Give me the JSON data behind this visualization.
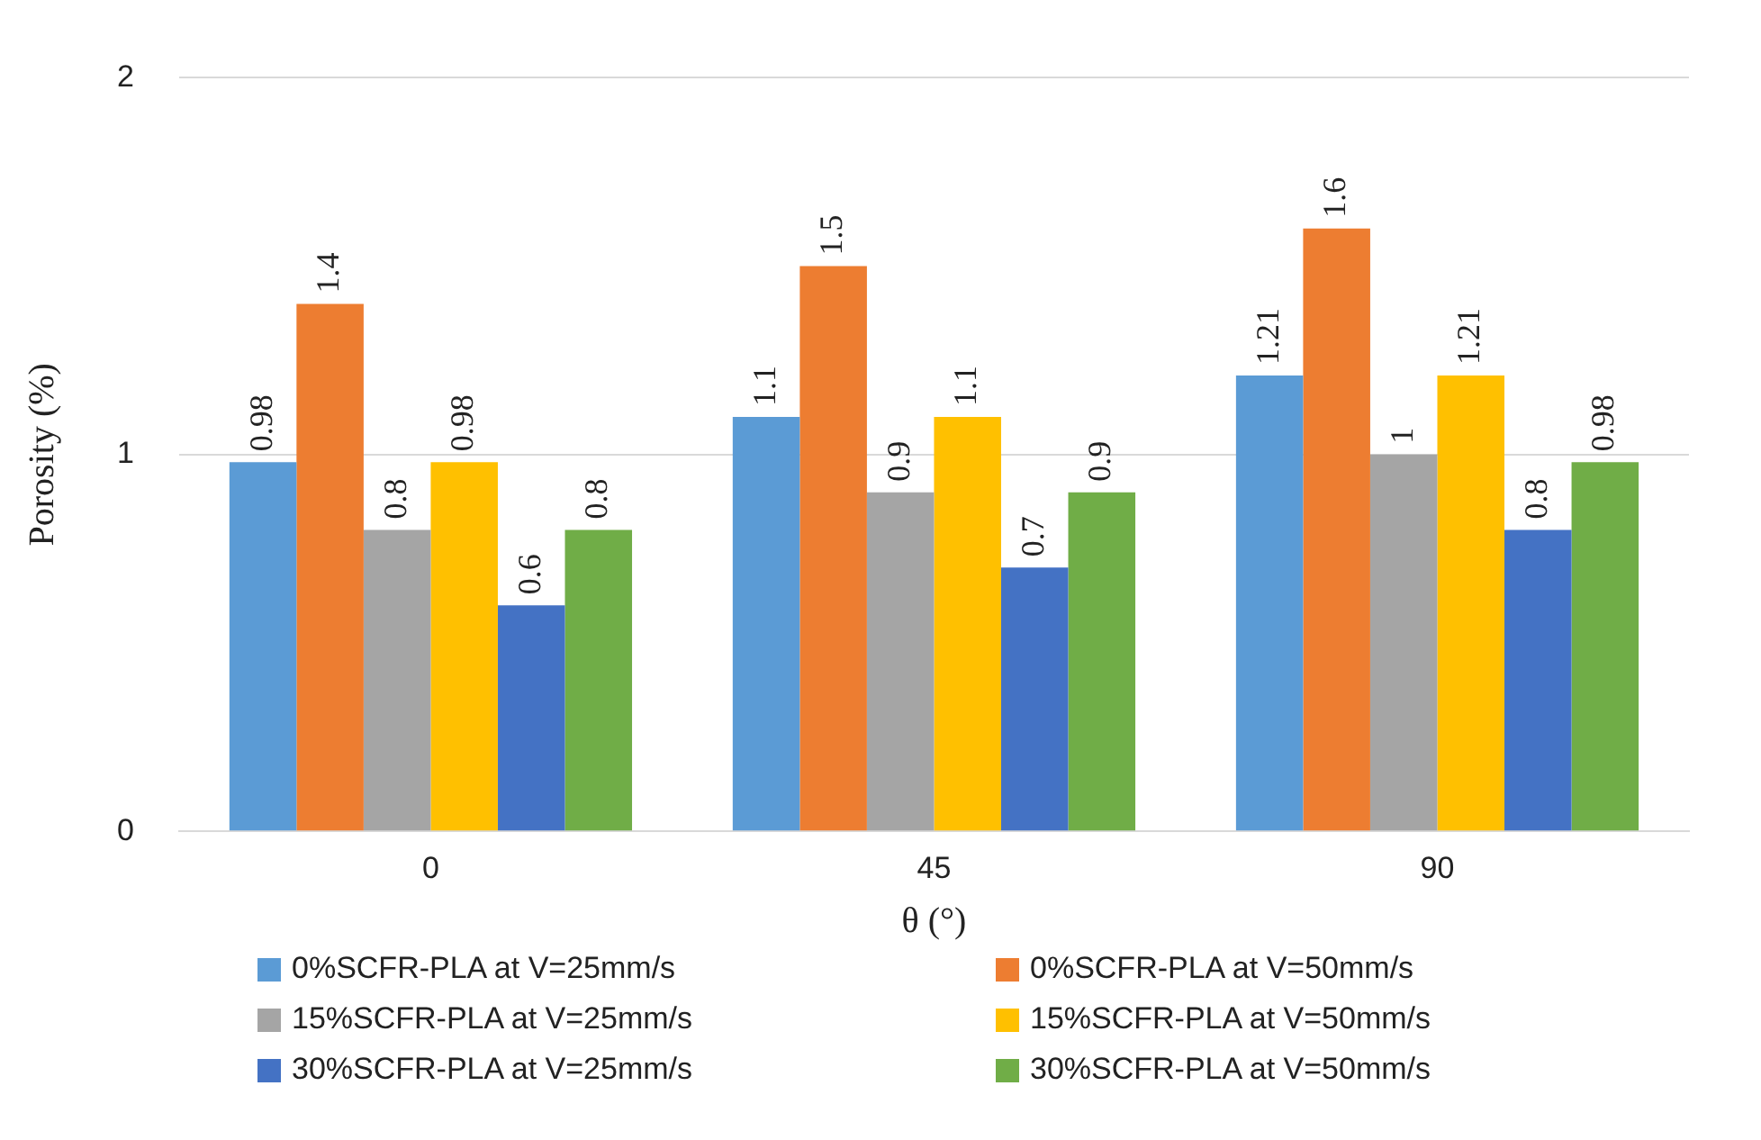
{
  "chart_data": {
    "type": "bar",
    "xlabel": "θ (°)",
    "ylabel": "Porosity (%)",
    "categories": [
      "0",
      "45",
      "90"
    ],
    "series": [
      {
        "name": "0%SCFR-PLA at V=25mm/s",
        "color": "#5b9bd5",
        "values": [
          0.98,
          1.1,
          1.21
        ]
      },
      {
        "name": "0%SCFR-PLA at V=50mm/s",
        "color": "#ed7d31",
        "values": [
          1.4,
          1.5,
          1.6
        ]
      },
      {
        "name": "15%SCFR-PLA at V=25mm/s",
        "color": "#a5a5a5",
        "values": [
          0.8,
          0.9,
          1
        ]
      },
      {
        "name": "15%SCFR-PLA at V=50mm/s",
        "color": "#ffc000",
        "values": [
          0.98,
          1.1,
          1.21
        ]
      },
      {
        "name": "30%SCFR-PLA at V=25mm/s",
        "color": "#4472c4",
        "values": [
          0.6,
          0.7,
          0.8
        ]
      },
      {
        "name": "30%SCFR-PLA at V=50mm/s",
        "color": "#70ad47",
        "values": [
          0.8,
          0.9,
          0.98
        ]
      }
    ],
    "ylim": [
      0,
      2
    ],
    "yticks": [
      0,
      1,
      2
    ],
    "grid": "y",
    "legend": "bottom",
    "data_labels": true
  }
}
